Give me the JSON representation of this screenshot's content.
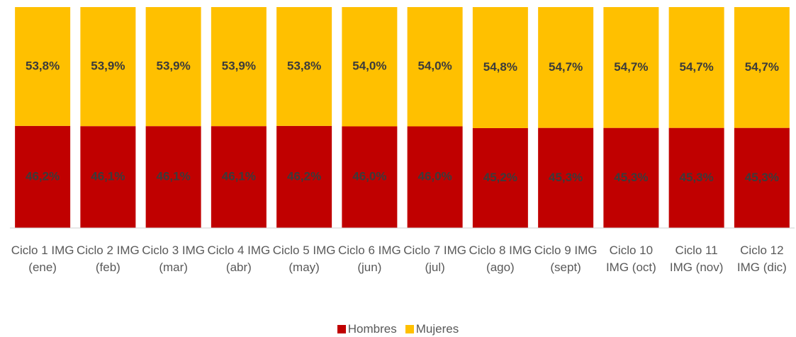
{
  "chart_data": {
    "type": "stacked_bar",
    "categories": [
      "Ciclo 1 IMG (ene)",
      "Ciclo 2 IMG (feb)",
      "Ciclo 3 IMG (mar)",
      "Ciclo 4 IMG (abr)",
      "Ciclo 5 IMG (may)",
      "Ciclo 6 IMG (jun)",
      "Ciclo 7 IMG (jul)",
      "Ciclo 8 IMG (ago)",
      "Ciclo 9 IMG (sept)",
      "Ciclo 10 IMG (oct)",
      "Ciclo 11 IMG (nov)",
      "Ciclo 12 IMG (dic)"
    ],
    "series": [
      {
        "name": "Hombres",
        "color": "#c00000",
        "values": [
          46.2,
          46.1,
          46.1,
          46.1,
          46.2,
          46.0,
          46.0,
          45.2,
          45.3,
          45.3,
          45.3,
          45.3
        ],
        "value_labels": [
          "46,2%",
          "46,1%",
          "46,1%",
          "46,1%",
          "46,2%",
          "46,0%",
          "46,0%",
          "45,2%",
          "45,3%",
          "45,3%",
          "45,3%",
          "45,3%"
        ]
      },
      {
        "name": "Mujeres",
        "color": "#ffc000",
        "values": [
          53.8,
          53.9,
          53.9,
          53.9,
          53.8,
          54.0,
          54.0,
          54.8,
          54.7,
          54.7,
          54.7,
          54.7
        ],
        "value_labels": [
          "53,8%",
          "53,9%",
          "53,9%",
          "53,9%",
          "53,8%",
          "54,0%",
          "54,0%",
          "54,8%",
          "54,7%",
          "54,7%",
          "54,7%",
          "54,7%"
        ]
      }
    ],
    "legend": "bottom"
  }
}
